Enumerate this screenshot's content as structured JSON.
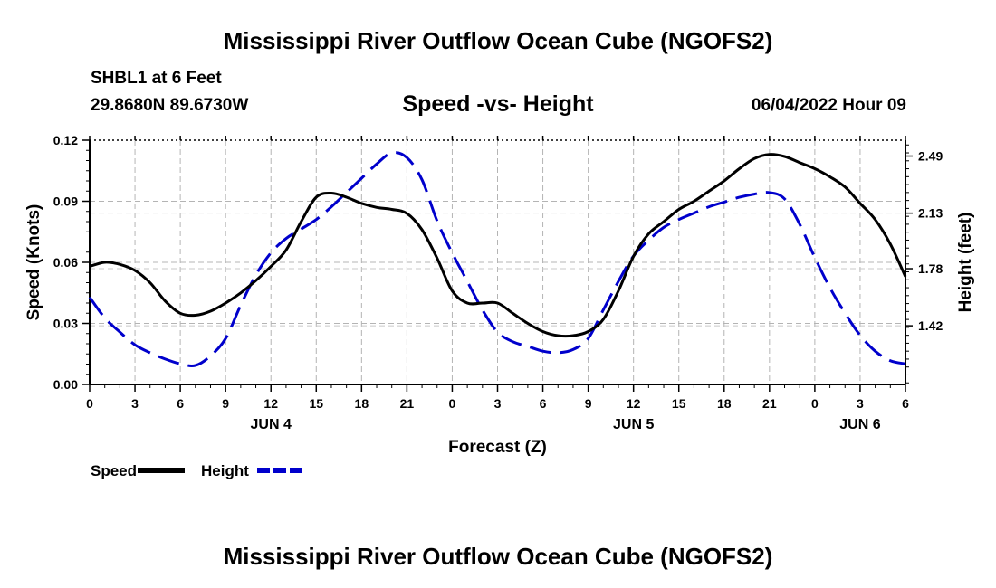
{
  "header": {
    "title": "Mississippi River Outflow Ocean Cube (NGOFS2)",
    "station": "SHBL1 at 6 Feet",
    "coordinates": "29.8680N  89.6730W",
    "subtitle": "Speed -vs- Height",
    "timestamp": "06/04/2022 Hour 09"
  },
  "footer": {
    "title": "Mississippi River Outflow Ocean Cube (NGOFS2)"
  },
  "chart_data": {
    "type": "line",
    "title": "Speed -vs- Height",
    "xlabel": "Forecast (Z)",
    "ylabel_left": "Speed (Knots)",
    "ylabel_right": "Height (feet)",
    "x_unit": "hours since 00Z Jun 4",
    "xlim": [
      0,
      54
    ],
    "x_ticks": [
      0,
      3,
      6,
      9,
      12,
      15,
      18,
      21,
      24,
      27,
      30,
      33,
      36,
      39,
      42,
      45,
      48,
      51,
      54
    ],
    "x_tick_labels": [
      "0",
      "3",
      "6",
      "9",
      "12",
      "15",
      "18",
      "21",
      "0",
      "3",
      "6",
      "9",
      "12",
      "15",
      "18",
      "21",
      "0",
      "3",
      "6"
    ],
    "day_labels": [
      {
        "x": 12,
        "label": "JUN 4"
      },
      {
        "x": 36,
        "label": "JUN 5"
      },
      {
        "x": 51,
        "label": "JUN 6"
      }
    ],
    "ylim_left": [
      0,
      0.12
    ],
    "y_left_ticks": [
      "0.00",
      "0.03",
      "0.06",
      "0.09",
      "0.12"
    ],
    "ylim_right": [
      1.05,
      2.59
    ],
    "y_right_ticks": [
      "1.42",
      "1.78",
      "2.13",
      "2.49"
    ],
    "grid": true,
    "legend_position": "bottom-left",
    "series": [
      {
        "name": "Speed",
        "axis": "left",
        "color": "#000000",
        "dash": "solid",
        "x": [
          0,
          1,
          2,
          3,
          4,
          5,
          6,
          7,
          8,
          9,
          10,
          11,
          12,
          13,
          14,
          15,
          16,
          17,
          18,
          19,
          20,
          21,
          22,
          23,
          24,
          25,
          26,
          27,
          28,
          29,
          30,
          31,
          32,
          33,
          34,
          35,
          36,
          37,
          38,
          39,
          40,
          41,
          42,
          43,
          44,
          45,
          46,
          47,
          48,
          49,
          50,
          51,
          52,
          53,
          54
        ],
        "values": [
          0.058,
          0.06,
          0.059,
          0.056,
          0.05,
          0.041,
          0.035,
          0.034,
          0.036,
          0.04,
          0.045,
          0.051,
          0.058,
          0.066,
          0.08,
          0.092,
          0.094,
          0.092,
          0.089,
          0.087,
          0.086,
          0.084,
          0.076,
          0.062,
          0.046,
          0.04,
          0.04,
          0.04,
          0.035,
          0.03,
          0.026,
          0.024,
          0.024,
          0.026,
          0.032,
          0.046,
          0.063,
          0.074,
          0.08,
          0.086,
          0.09,
          0.095,
          0.1,
          0.106,
          0.111,
          0.113,
          0.112,
          0.109,
          0.106,
          0.102,
          0.097,
          0.089,
          0.081,
          0.069,
          0.053
        ]
      },
      {
        "name": "Height",
        "axis": "right",
        "color": "#0000cc",
        "dash": "dashed",
        "x": [
          0,
          1,
          2,
          3,
          4,
          5,
          6,
          7,
          8,
          9,
          10,
          11,
          12,
          13,
          14,
          15,
          16,
          17,
          18,
          19,
          20,
          21,
          22,
          23,
          24,
          25,
          26,
          27,
          28,
          29,
          30,
          31,
          32,
          33,
          34,
          35,
          36,
          37,
          38,
          39,
          40,
          41,
          42,
          43,
          44,
          45,
          46,
          47,
          48,
          49,
          50,
          51,
          52,
          53,
          54
        ],
        "values": [
          1.6,
          1.47,
          1.38,
          1.3,
          1.25,
          1.21,
          1.18,
          1.17,
          1.23,
          1.34,
          1.55,
          1.74,
          1.88,
          1.97,
          2.03,
          2.09,
          2.17,
          2.26,
          2.35,
          2.44,
          2.51,
          2.48,
          2.34,
          2.08,
          1.88,
          1.7,
          1.52,
          1.38,
          1.32,
          1.29,
          1.26,
          1.25,
          1.27,
          1.34,
          1.52,
          1.7,
          1.86,
          1.96,
          2.04,
          2.09,
          2.13,
          2.17,
          2.2,
          2.23,
          2.25,
          2.26,
          2.22,
          2.06,
          1.85,
          1.66,
          1.5,
          1.36,
          1.26,
          1.2,
          1.18
        ]
      }
    ]
  }
}
